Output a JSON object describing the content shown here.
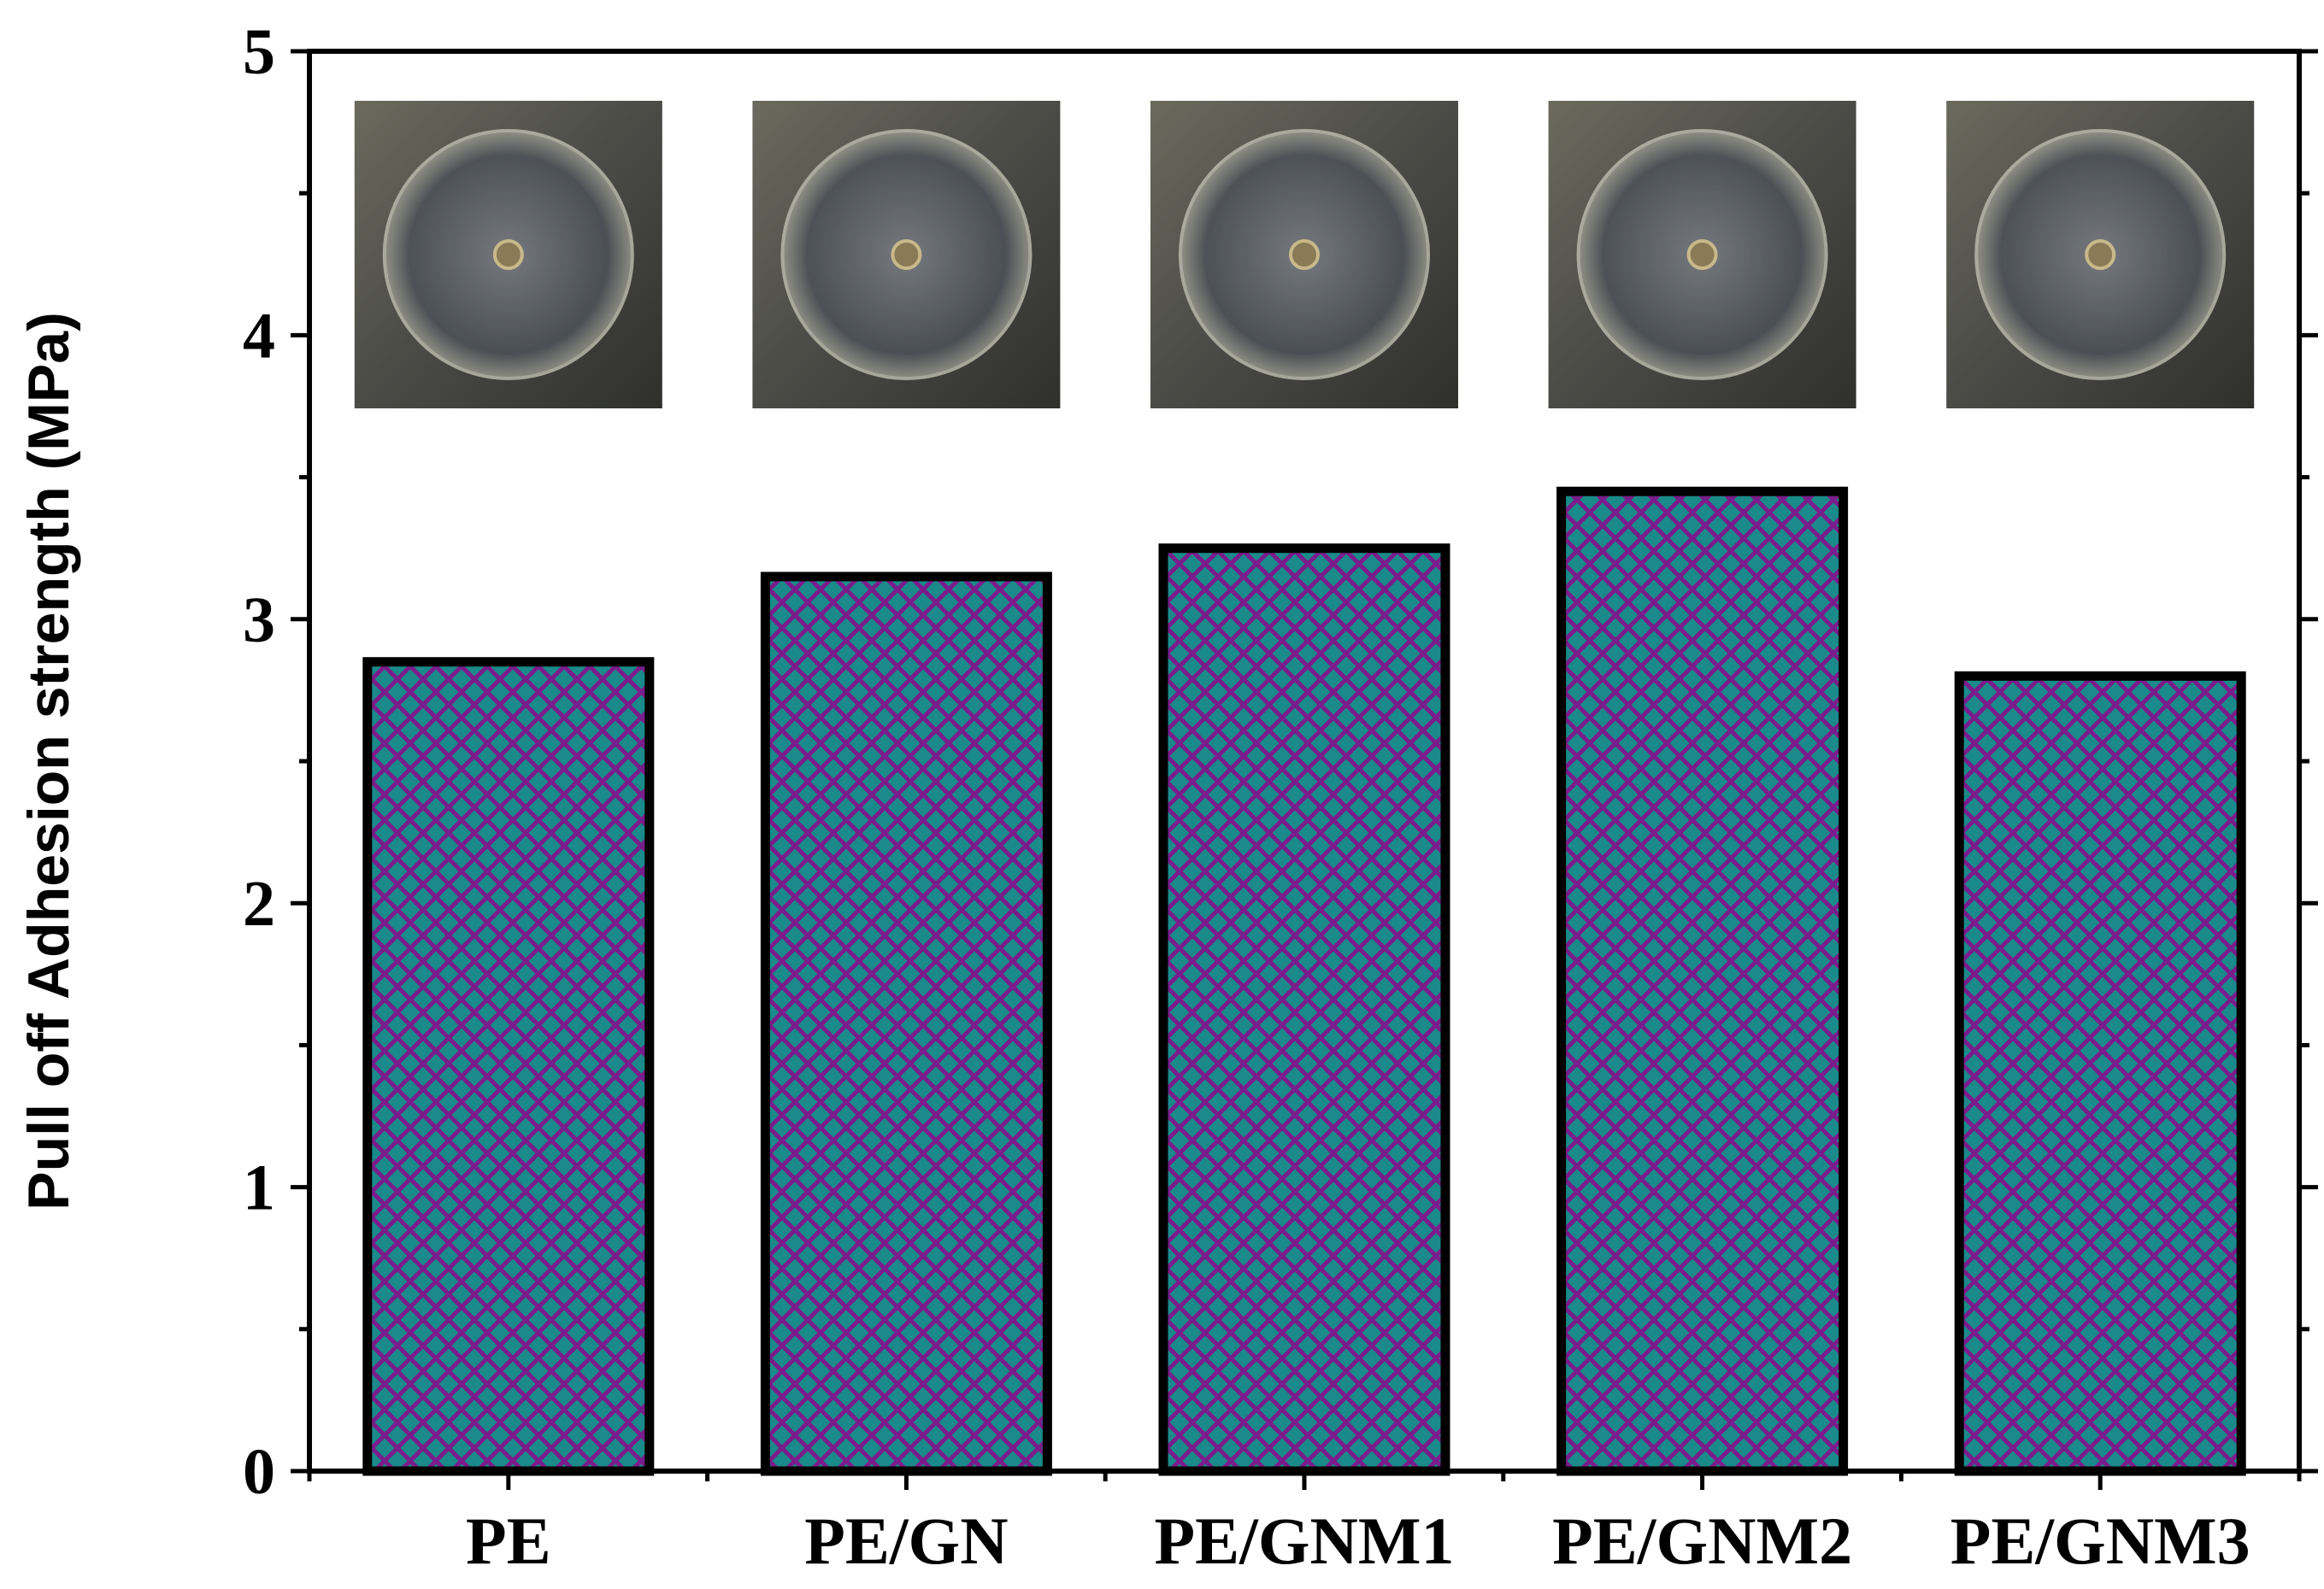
{
  "chart_data": {
    "type": "bar",
    "title": "",
    "xlabel": "",
    "ylabel": "Pull off Adhesion strength (MPa)",
    "categories": [
      "PE",
      "PE/GN",
      "PE/GNM1",
      "PE/GNM2",
      "PE/GNM3"
    ],
    "values": [
      2.85,
      3.15,
      3.25,
      3.45,
      2.8
    ],
    "ylim": [
      0,
      5
    ],
    "yticks": [
      "0",
      "1",
      "2",
      "3",
      "4",
      "5"
    ],
    "grid": false,
    "legend": "none",
    "bar_fill_color": "#1a8a8a",
    "bar_hatch_color": "#7b1c8c",
    "bar_edge_color": "#000000",
    "inset_images": [
      "coating-photo-PE",
      "coating-photo-PE/GN",
      "coating-photo-PE/GNM1",
      "coating-photo-PE/GNM2",
      "coating-photo-PE/GNM3"
    ]
  }
}
